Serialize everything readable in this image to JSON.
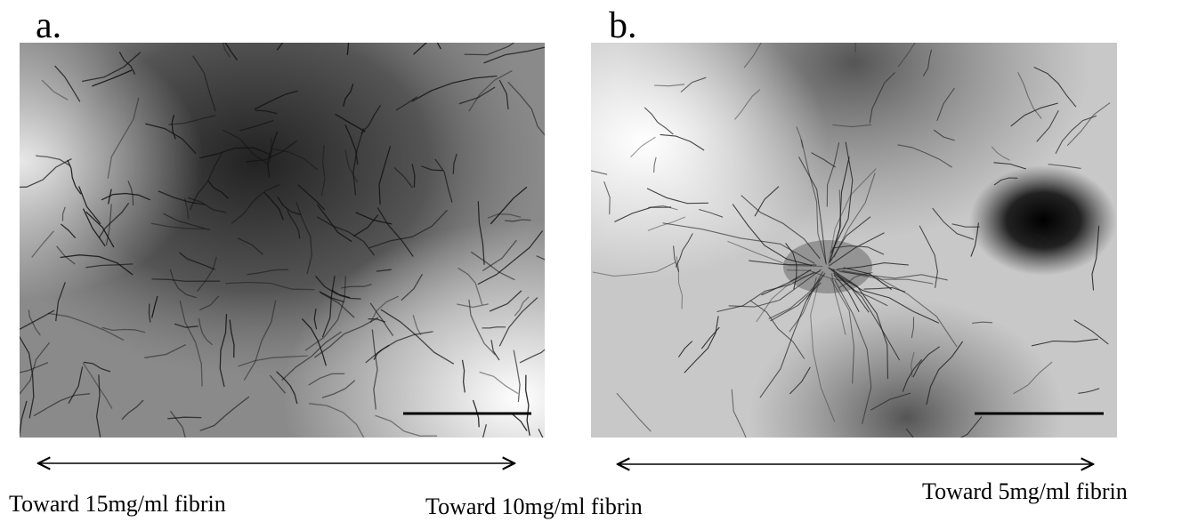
{
  "panels": [
    {
      "label": "a.",
      "directions": [
        "Toward 15mg/ml fibrin",
        "Toward 10mg/ml fibrin"
      ]
    },
    {
      "label": "b.",
      "directions": [
        "Toward 5mg/ml fibrin"
      ]
    }
  ]
}
